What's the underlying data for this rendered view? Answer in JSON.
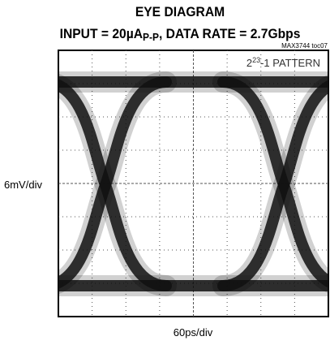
{
  "title": "EYE DIAGRAM",
  "subtitle": {
    "before": "INPUT = 20µA",
    "sub": "P-P",
    "after": ", DATA RATE = 2.7Gbps"
  },
  "tag": "MAX3744 toc07",
  "pattern": {
    "base": "2",
    "sup": "23",
    "after": "-1 PATTERN"
  },
  "y_label": "6mV/div",
  "x_label": "60ps/div"
}
